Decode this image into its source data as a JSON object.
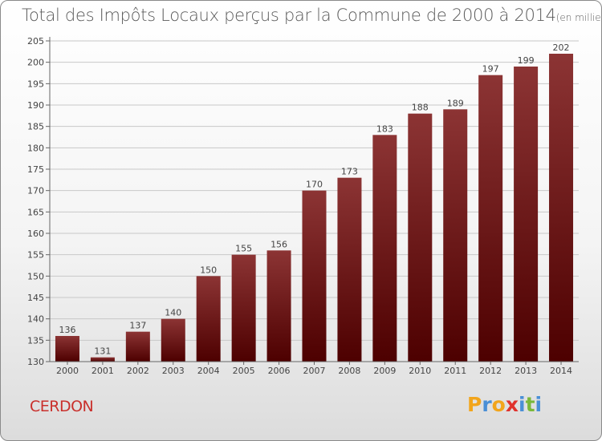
{
  "header": {
    "title": "Total des Impôts Locaux perçus par la Commune de 2000 à 2014",
    "unit": "(en milliers d'€)"
  },
  "commune": "CERDON",
  "logo": {
    "letters": [
      "P",
      "r",
      "o",
      "x",
      "i",
      "t",
      "i"
    ],
    "colors": [
      "#f2a51c",
      "#4a8fd6",
      "#f2a51c",
      "#e0322c",
      "#4a8fd6",
      "#7ab83a",
      "#4a8fd6"
    ]
  },
  "colors": {
    "bar_top": "#8c3434",
    "bar_bottom": "#4d0000",
    "grid": "#c8c8c8",
    "text": "#444444"
  },
  "chart_data": {
    "type": "bar",
    "title": "Total des Impôts Locaux perçus par la Commune de 2000 à 2014",
    "xlabel": "",
    "ylabel": "",
    "categories": [
      "2000",
      "2001",
      "2002",
      "2003",
      "2004",
      "2005",
      "2006",
      "2007",
      "2008",
      "2009",
      "2010",
      "2011",
      "2012",
      "2013",
      "2014"
    ],
    "values": [
      136,
      131,
      137,
      140,
      150,
      155,
      156,
      170,
      173,
      183,
      188,
      189,
      197,
      199,
      202
    ],
    "ylim": [
      130,
      205
    ],
    "yticks": [
      130,
      135,
      140,
      145,
      150,
      155,
      160,
      165,
      170,
      175,
      180,
      185,
      190,
      195,
      200,
      205
    ],
    "grid": true
  }
}
